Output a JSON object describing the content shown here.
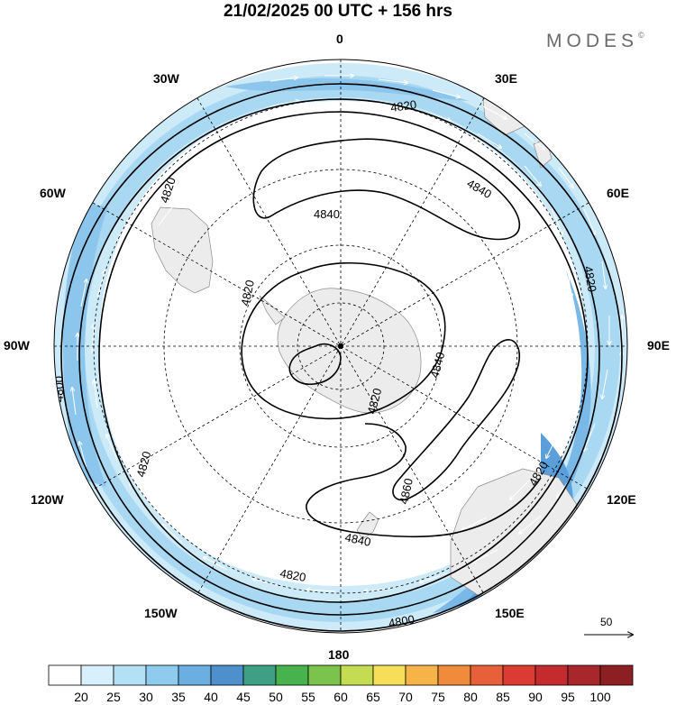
{
  "header": {
    "title": "21/02/2025  00 UTC  + 156 hrs",
    "brand": "MODES"
  },
  "longitude_labels": [
    {
      "id": "0",
      "text": "0"
    },
    {
      "id": "30e",
      "text": "30E"
    },
    {
      "id": "60e",
      "text": "60E"
    },
    {
      "id": "90e",
      "text": "90E"
    },
    {
      "id": "120e",
      "text": "120E"
    },
    {
      "id": "150e",
      "text": "150E"
    },
    {
      "id": "180",
      "text": "180"
    },
    {
      "id": "150w",
      "text": "150W"
    },
    {
      "id": "120w",
      "text": "120W"
    },
    {
      "id": "90w",
      "text": "90W"
    },
    {
      "id": "60w",
      "text": "60W"
    },
    {
      "id": "30w",
      "text": "30W"
    }
  ],
  "contour_labels": [
    "4820",
    "4840",
    "4840",
    "4820",
    "4820",
    "4800",
    "4820",
    "4840",
    "4820",
    "4860",
    "4840",
    "4820",
    "4820",
    "4800",
    "4820"
  ],
  "vector_scale": {
    "value": "50"
  },
  "colorbar": {
    "ticks": [
      "20",
      "25",
      "30",
      "35",
      "40",
      "45",
      "50",
      "55",
      "60",
      "65",
      "70",
      "75",
      "80",
      "85",
      "90",
      "95",
      "100"
    ],
    "colors": [
      "#ffffff",
      "#d8f0fb",
      "#b4e0f6",
      "#8fcbef",
      "#6aaee2",
      "#4d90cc",
      "#3f9f85",
      "#47b24e",
      "#7bc34c",
      "#c4dc52",
      "#f6de59",
      "#f6b448",
      "#f08b3b",
      "#e8603a",
      "#dc3b33",
      "#c42b2f",
      "#a8272b",
      "#8b1f22"
    ]
  }
}
